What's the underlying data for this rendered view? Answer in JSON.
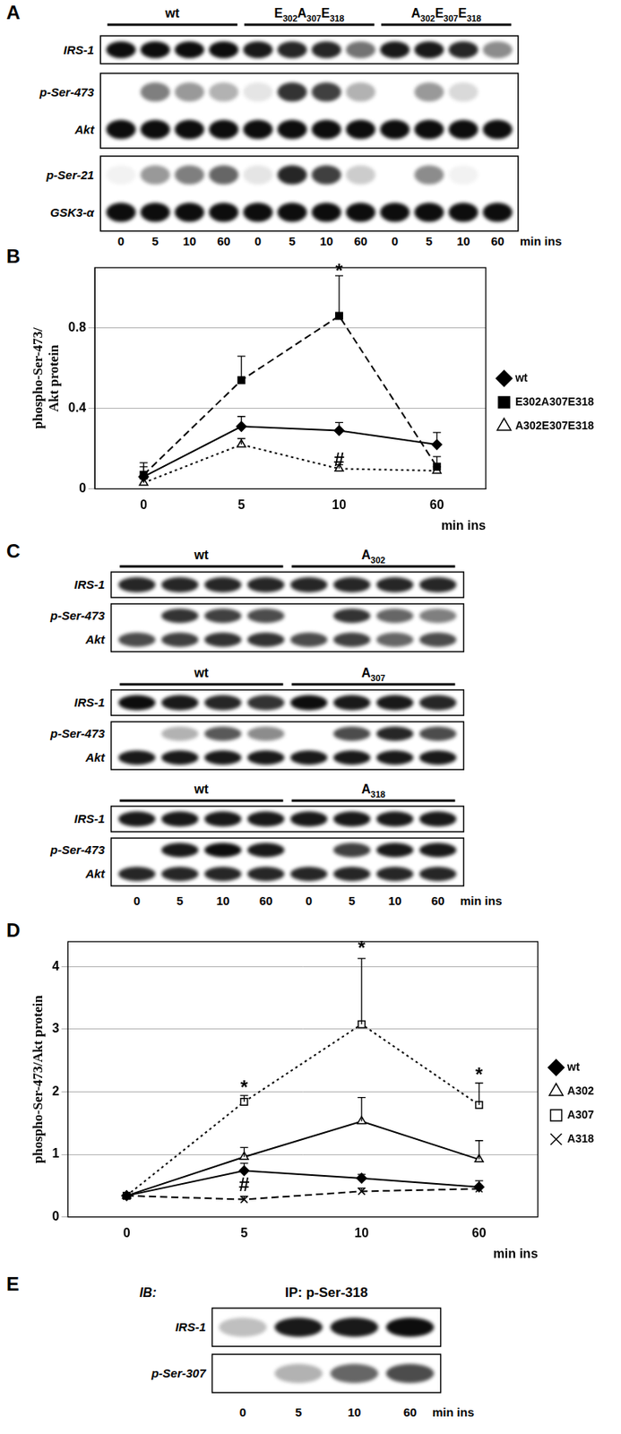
{
  "panel_labels": [
    "A",
    "B",
    "C",
    "D",
    "E"
  ],
  "panel_A": {
    "groups": [
      "wt",
      "E302A307E318",
      "A302E307E318"
    ],
    "times": [
      "0",
      "5",
      "10",
      "60"
    ],
    "time_unit": "min ins",
    "boxes": [
      [
        {
          "label": "IRS-1",
          "bands": [
            0.95,
            0.95,
            0.95,
            0.95,
            0.9,
            0.85,
            0.85,
            0.55,
            0.9,
            0.9,
            0.85,
            0.45
          ]
        }
      ],
      [
        {
          "label": "p-Ser-473",
          "bands": [
            0,
            0.5,
            0.4,
            0.3,
            0.1,
            0.8,
            0.75,
            0.3,
            0,
            0.4,
            0.15,
            0
          ]
        },
        {
          "label": "Akt",
          "bands": [
            0.95,
            0.95,
            0.95,
            0.95,
            0.95,
            0.95,
            0.95,
            0.95,
            0.95,
            0.95,
            0.95,
            0.95
          ]
        }
      ],
      [
        {
          "label": "p-Ser-21",
          "bands": [
            0.05,
            0.4,
            0.5,
            0.6,
            0.1,
            0.85,
            0.75,
            0.2,
            0,
            0.45,
            0.05,
            0
          ]
        },
        {
          "label": "GSK3-α",
          "bands": [
            0.95,
            0.95,
            0.95,
            0.95,
            0.95,
            0.95,
            0.95,
            0.95,
            0.95,
            0.95,
            0.95,
            0.95
          ]
        }
      ]
    ]
  },
  "panel_C": {
    "times": [
      "0",
      "5",
      "10",
      "60"
    ],
    "time_unit": "min ins",
    "blocks": [
      {
        "groups": [
          "wt",
          "A302"
        ],
        "boxes": [
          [
            {
              "label": "IRS-1",
              "bands": [
                0.85,
                0.85,
                0.85,
                0.85,
                0.85,
                0.85,
                0.85,
                0.85
              ]
            }
          ],
          [
            {
              "label": "p-Ser-473",
              "bands": [
                0,
                0.8,
                0.75,
                0.7,
                0,
                0.8,
                0.6,
                0.5
              ]
            },
            {
              "label": "Akt",
              "bands": [
                0.7,
                0.75,
                0.8,
                0.8,
                0.7,
                0.75,
                0.6,
                0.7
              ]
            }
          ]
        ]
      },
      {
        "groups": [
          "wt",
          "A307"
        ],
        "boxes": [
          [
            {
              "label": "IRS-1",
              "bands": [
                0.95,
                0.9,
                0.85,
                0.8,
                0.95,
                0.9,
                0.9,
                0.85
              ]
            }
          ],
          [
            {
              "label": "p-Ser-473",
              "bands": [
                0,
                0.3,
                0.65,
                0.45,
                0,
                0.7,
                0.85,
                0.7
              ]
            },
            {
              "label": "Akt",
              "bands": [
                0.9,
                0.9,
                0.9,
                0.9,
                0.9,
                0.9,
                0.9,
                0.9
              ]
            }
          ]
        ]
      },
      {
        "groups": [
          "wt",
          "A318"
        ],
        "boxes": [
          [
            {
              "label": "IRS-1",
              "bands": [
                0.9,
                0.9,
                0.9,
                0.9,
                0.9,
                0.9,
                0.9,
                0.9
              ]
            }
          ],
          [
            {
              "label": "p-Ser-473",
              "bands": [
                0,
                0.9,
                0.95,
                0.9,
                0,
                0.75,
                0.9,
                0.9
              ]
            },
            {
              "label": "Akt",
              "bands": [
                0.85,
                0.85,
                0.85,
                0.85,
                0.85,
                0.85,
                0.85,
                0.85
              ]
            }
          ]
        ]
      }
    ]
  },
  "panel_E": {
    "ib": "IB:",
    "ip": "IP: p-Ser-318",
    "times": [
      "0",
      "5",
      "10",
      "60"
    ],
    "time_unit": "min ins",
    "rows": [
      {
        "label": "IRS-1",
        "bands": [
          0.25,
          0.9,
          0.9,
          0.95
        ]
      },
      {
        "label": "p-Ser-307",
        "bands": [
          0,
          0.3,
          0.6,
          0.7
        ]
      }
    ]
  },
  "chart_data": [
    {
      "type": "line",
      "ylabel": [
        "phospho-Ser-473/",
        "Akt protein"
      ],
      "xlabel": "min ins",
      "categories": [
        "0",
        "5",
        "10",
        "60"
      ],
      "ylim": [
        0,
        1.1
      ],
      "yticks": [
        0,
        0.4,
        0.8
      ],
      "grid": true,
      "legend": "right",
      "series": [
        {
          "name": "wt",
          "color": "#000000",
          "marker": "diamond",
          "line_style": "solid",
          "values": [
            0.06,
            0.31,
            0.29,
            0.22
          ],
          "errors": [
            0.05,
            0.05,
            0.04,
            0.06
          ]
        },
        {
          "name": "E302A307E318",
          "color": "#000000",
          "marker": "square",
          "line_style": "dashed",
          "values": [
            0.07,
            0.54,
            0.86,
            0.11
          ],
          "errors": [
            0.06,
            0.12,
            0.2,
            0.05
          ]
        },
        {
          "name": "A302E307E318",
          "color": "#000000",
          "marker": "triangle-open",
          "line_style": "dotted",
          "values": [
            0.03,
            0.22,
            0.1,
            0.09
          ],
          "errors": [
            0.02,
            0.03,
            0.02,
            0.02
          ]
        }
      ],
      "annotations": [
        {
          "x": "10",
          "y": 1.08,
          "text": "*"
        },
        {
          "x": "10",
          "y": 0.14,
          "text": "#"
        }
      ]
    },
    {
      "type": "line",
      "ylabel": [
        "phospho-Ser-473/Akt protein"
      ],
      "xlabel": "min ins",
      "categories": [
        "0",
        "5",
        "10",
        "60"
      ],
      "ylim": [
        0,
        4.4
      ],
      "yticks": [
        0,
        1,
        2,
        3,
        4
      ],
      "grid": true,
      "legend": "right",
      "series": [
        {
          "name": "wt",
          "color": "#000000",
          "marker": "diamond",
          "line_style": "solid",
          "values": [
            0.34,
            0.74,
            0.62,
            0.48
          ],
          "errors": [
            0,
            0.12,
            0.06,
            0.1
          ]
        },
        {
          "name": "A302",
          "color": "#000000",
          "marker": "triangle-open",
          "line_style": "solid",
          "values": [
            0.34,
            0.96,
            1.53,
            0.92
          ],
          "errors": [
            0,
            0.15,
            0.38,
            0.3
          ]
        },
        {
          "name": "A307",
          "color": "#000000",
          "marker": "square-open",
          "line_style": "dotted",
          "values": [
            0.34,
            1.84,
            3.08,
            1.79
          ],
          "errors": [
            0,
            0.1,
            1.05,
            0.35
          ]
        },
        {
          "name": "A318",
          "color": "#000000",
          "marker": "x",
          "line_style": "dashed",
          "values": [
            0.34,
            0.28,
            0.41,
            0.45
          ],
          "errors": [
            0,
            0.05,
            0.05,
            0.05
          ]
        }
      ],
      "annotations": [
        {
          "x": "5",
          "y": 2.05,
          "text": "*"
        },
        {
          "x": "10",
          "y": 4.28,
          "text": "*"
        },
        {
          "x": "60",
          "y": 2.25,
          "text": "*"
        },
        {
          "x": "5",
          "y": 0.5,
          "text": "#"
        }
      ]
    }
  ]
}
